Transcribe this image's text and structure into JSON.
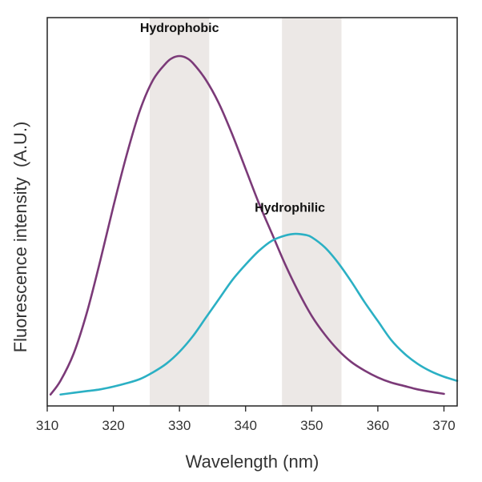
{
  "chart_data": {
    "type": "line",
    "title": "",
    "xlabel": "Wavelength (nm)",
    "ylabel": "Fluorescence intensity  (A.U.)",
    "xlim": [
      310,
      372
    ],
    "ylim": [
      0,
      1.0
    ],
    "xticks": [
      310,
      320,
      330,
      340,
      350,
      360,
      370
    ],
    "yticks_shown": false,
    "grid": false,
    "shaded_bands": [
      {
        "name": "hydrophobic-band",
        "x_start": 325.5,
        "x_end": 334.5,
        "color": "#ece8e6"
      },
      {
        "name": "hydrophilic-band",
        "x_start": 345.5,
        "x_end": 354.5,
        "color": "#ece8e6"
      }
    ],
    "series": [
      {
        "name": "Hydrophobic",
        "color": "#7b3a78",
        "x": [
          310.5,
          312,
          314,
          316,
          318,
          320,
          322,
          324,
          326,
          328,
          329,
          330,
          331,
          332,
          334,
          336,
          338,
          340,
          342,
          344,
          346,
          348,
          350,
          352,
          354,
          356,
          358,
          360,
          362,
          364,
          366,
          368,
          370
        ],
        "y": [
          0.01,
          0.05,
          0.13,
          0.25,
          0.4,
          0.56,
          0.71,
          0.84,
          0.93,
          0.98,
          0.995,
          1.0,
          0.995,
          0.98,
          0.93,
          0.86,
          0.77,
          0.67,
          0.57,
          0.48,
          0.39,
          0.31,
          0.24,
          0.185,
          0.14,
          0.105,
          0.08,
          0.06,
          0.045,
          0.035,
          0.025,
          0.018,
          0.012
        ]
      },
      {
        "name": "Hydrophilic",
        "color": "#2bb0c4",
        "x": [
          312,
          314,
          316,
          318,
          320,
          322,
          324,
          326,
          328,
          330,
          332,
          334,
          336,
          338,
          340,
          342,
          344,
          346,
          347.5,
          349,
          350,
          352,
          354,
          356,
          358,
          360,
          362,
          364,
          366,
          368,
          370,
          372
        ],
        "y": [
          0.01,
          0.015,
          0.02,
          0.025,
          0.033,
          0.043,
          0.055,
          0.075,
          0.1,
          0.135,
          0.18,
          0.235,
          0.29,
          0.345,
          0.39,
          0.43,
          0.46,
          0.475,
          0.48,
          0.477,
          0.47,
          0.44,
          0.395,
          0.34,
          0.28,
          0.225,
          0.17,
          0.13,
          0.1,
          0.078,
          0.062,
          0.05
        ]
      }
    ],
    "annotations": [
      {
        "text": "Hydrophobic",
        "x": 330,
        "y": 1.07
      },
      {
        "text": "Hydrophilic",
        "x": 346.7,
        "y": 0.545
      }
    ]
  }
}
